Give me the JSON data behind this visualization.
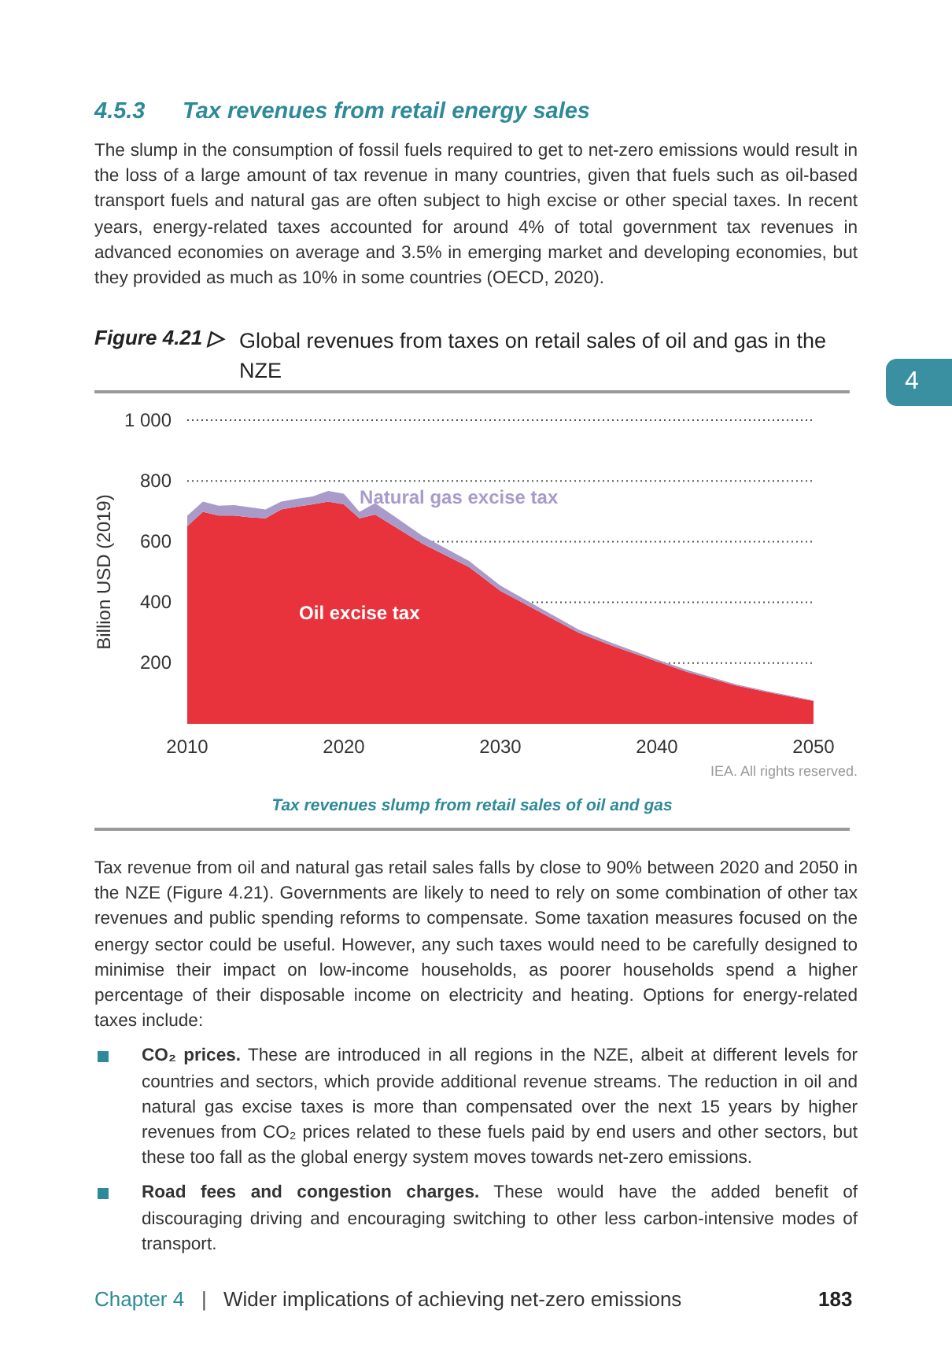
{
  "chart_data": {
    "type": "area",
    "stacked": true,
    "title": "Global revenues from taxes on retail sales of oil and gas in the NZE",
    "subtitle": "Tax revenues slump from retail sales of oil and gas",
    "ylabel": "Billion USD (2019)",
    "x": [
      2010,
      2011,
      2012,
      2013,
      2014,
      2015,
      2016,
      2017,
      2018,
      2019,
      2020,
      2021,
      2022,
      2025,
      2028,
      2030,
      2032,
      2035,
      2037,
      2040,
      2042,
      2045,
      2047,
      2050
    ],
    "series": [
      {
        "name": "Oil excise tax",
        "color": "#e8323c",
        "values": [
          651,
          698,
          686,
          686,
          680,
          677,
          706,
          715,
          723,
          732,
          723,
          677,
          689,
          594,
          516,
          438,
          383,
          300,
          260,
          205,
          170,
          127,
          105,
          75
        ]
      },
      {
        "name": "Natural gas excise tax",
        "color": "#a99bc9",
        "values": [
          34,
          34,
          32,
          34,
          33,
          29,
          26,
          26,
          26,
          35,
          35,
          21,
          38,
          26,
          20,
          17,
          14,
          10,
          9,
          7,
          6,
          4,
          3,
          2
        ]
      }
    ],
    "xlim": [
      2010,
      2050
    ],
    "xticks": [
      2010,
      2020,
      2030,
      2040,
      2050
    ],
    "ylim": [
      0,
      1000
    ],
    "yticks": [
      200,
      400,
      600,
      800,
      {
        "value": 1000,
        "label": "1 000"
      }
    ],
    "grid": "y",
    "legend": false,
    "annotations": [
      "4.5.3",
      "Tax revenues from retail energy sales",
      "The slump in the consumption of fossil fuels required to get to net-zero emissions would result in the loss of a large amount of tax revenue in many countries, given that fuels such as oil-based transport fuels and natural gas are often subject to high excise or other special taxes. In recent years, energy-related taxes accounted for around 4% of total government tax revenues in advanced economies on average and 3.5% in emerging market and developing economies, but they provided as much as 10% in some countries (OECD, 2020).",
      "Figure 4.21 ▷",
      "IEA. All rights reserved.",
      "Tax revenue from oil and natural gas retail sales falls by close to 90% between 2020 and 2050 in the NZE (Figure 4.21). Governments are likely to need to rely on some combination of other tax revenues and public spending reforms to compensate. Some taxation measures focused on the energy sector could be useful. However, any such taxes would need to be carefully designed to minimise their impact on low-income households, as poorer households spend a higher percentage of their disposable income on electricity and heating. Options for energy-related taxes include:",
      "CO₂ prices.",
      "These are introduced in all regions in the NZE, albeit at different levels for countries and sectors, which provide additional revenue streams. The reduction in oil and natural gas excise taxes is more than compensated over the next 15 years by higher revenues from CO₂ prices related to these fuels paid by end users and other sectors, but these too fall as the global energy system moves towards net-zero emissions.",
      "Road fees and congestion charges.",
      "These would have the added benefit of discouraging driving and encouraging switching to other less carbon-intensive modes of transport.",
      "Chapter 4",
      "|",
      "Wider implications of achieving net-zero emissions",
      "183",
      "4"
    ]
  }
}
